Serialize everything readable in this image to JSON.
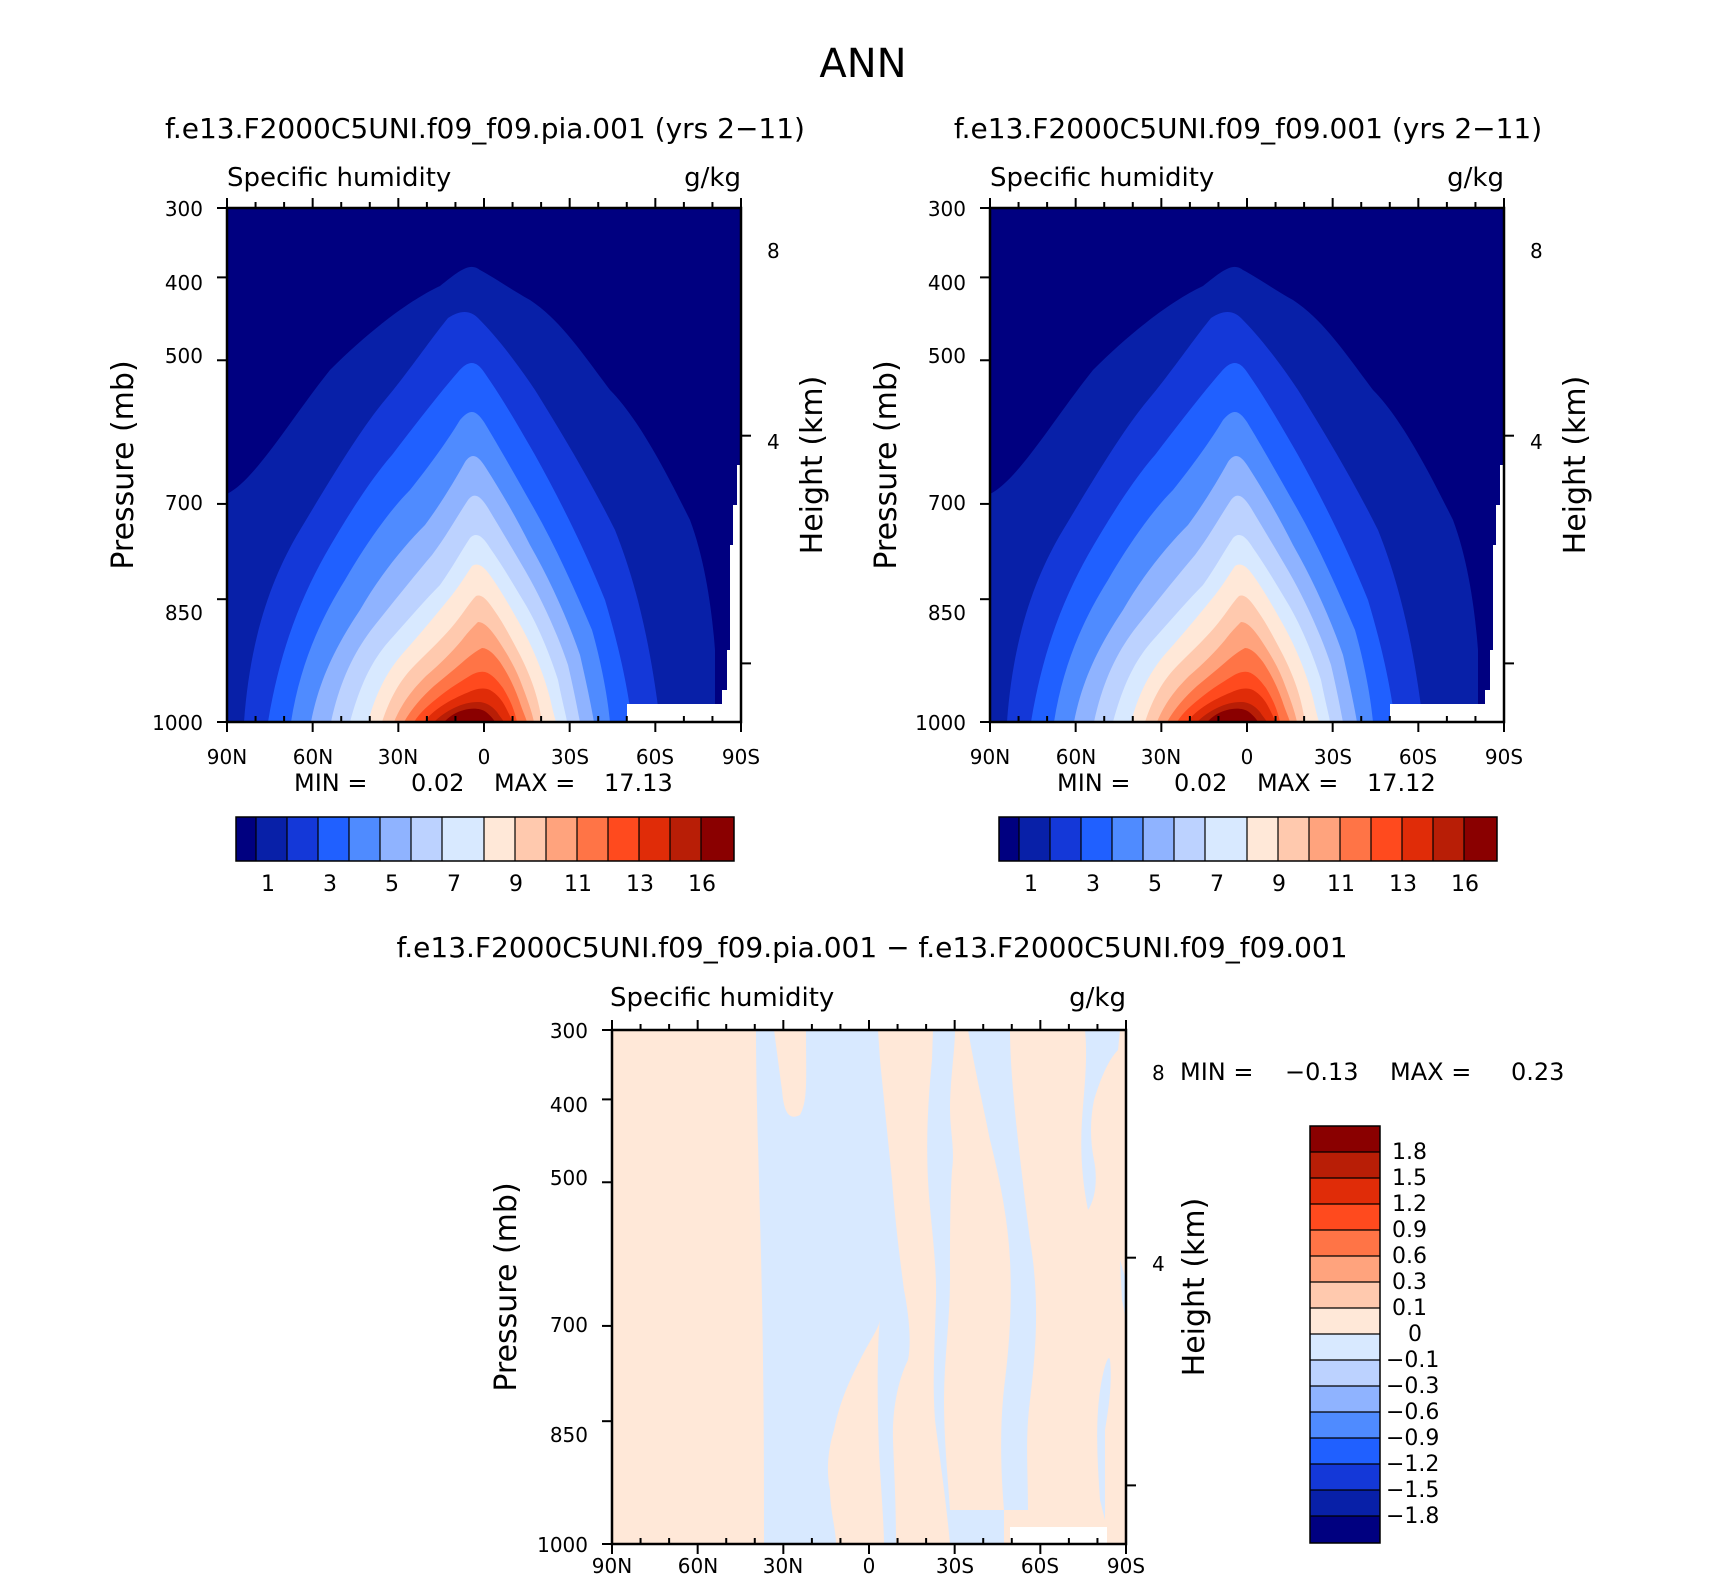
{
  "main_title": "ANN",
  "colors": {
    "deep_navy": "#000080",
    "navy": "#0820a8",
    "blue": "#1438d8",
    "mid_blue": "#2060ff",
    "light_blue": "#4f8bff",
    "pale_blue": "#8fb3ff",
    "very_pale_blue": "#bcd2ff",
    "near_white_blue": "#d8e9ff",
    "cream": "#ffe8d8",
    "peach": "#ffc9ae",
    "salmon": "#ffa37d",
    "orange": "#ff7446",
    "red_orange": "#ff4a1e",
    "red": "#e02c08",
    "dark_red": "#b81e06",
    "maroon": "#8a0000"
  },
  "chart_data": [
    {
      "type": "contour",
      "panel": "top-left",
      "title": "f.e13.F2000C5UNI.f09_f09.pia.001 (yrs 2−11)",
      "left_label": "Specific humidity",
      "right_label": "g/kg",
      "ylabel": "Pressure (mb)",
      "ylabel_right": "Height (km)",
      "x_tick_labels": [
        "90N",
        "60N",
        "30N",
        "0",
        "30S",
        "60S",
        "90S"
      ],
      "y_tick_labels": [
        "300",
        "400",
        "500",
        "700",
        "850",
        "1000"
      ],
      "y_right_tick_labels": [
        "8",
        "4"
      ],
      "xlim": [
        90,
        -90
      ],
      "ylim": [
        1000,
        300
      ],
      "min_label": "MIN =",
      "min_value": "0.02",
      "max_label": "MAX =",
      "max_value": "17.13",
      "colorbar_labels": [
        "1",
        "3",
        "5",
        "7",
        "9",
        "11",
        "13",
        "16"
      ],
      "colorbar_levels": [
        0.5,
        1,
        2,
        3,
        4,
        5,
        6,
        7,
        8,
        9,
        10,
        11,
        12,
        13,
        14,
        16
      ]
    },
    {
      "type": "contour",
      "panel": "top-right",
      "title": "f.e13.F2000C5UNI.f09_f09.001 (yrs 2−11)",
      "left_label": "Specific humidity",
      "right_label": "g/kg",
      "ylabel": "Pressure (mb)",
      "ylabel_right": "Height (km)",
      "x_tick_labels": [
        "90N",
        "60N",
        "30N",
        "0",
        "30S",
        "60S",
        "90S"
      ],
      "y_tick_labels": [
        "300",
        "400",
        "500",
        "700",
        "850",
        "1000"
      ],
      "y_right_tick_labels": [
        "8",
        "4"
      ],
      "xlim": [
        90,
        -90
      ],
      "ylim": [
        1000,
        300
      ],
      "min_label": "MIN =",
      "min_value": "0.02",
      "max_label": "MAX =",
      "max_value": "17.12",
      "colorbar_labels": [
        "1",
        "3",
        "5",
        "7",
        "9",
        "11",
        "13",
        "16"
      ]
    },
    {
      "type": "contour",
      "panel": "bottom-difference",
      "title": "f.e13.F2000C5UNI.f09_f09.pia.001 − f.e13.F2000C5UNI.f09_f09.001",
      "left_label": "Specific humidity",
      "right_label": "g/kg",
      "ylabel": "Pressure (mb)",
      "ylabel_right": "Height (km)",
      "x_tick_labels": [
        "90N",
        "60N",
        "30N",
        "0",
        "30S",
        "60S",
        "90S"
      ],
      "y_tick_labels": [
        "300",
        "400",
        "500",
        "700",
        "850",
        "1000"
      ],
      "y_right_tick_labels": [
        "8",
        "4"
      ],
      "xlim": [
        90,
        -90
      ],
      "ylim": [
        1000,
        300
      ],
      "min_label": "MIN =",
      "min_value": "−0.13",
      "max_label": "MAX =",
      "max_value": "0.23",
      "colorbar_labels": [
        "1.8",
        "1.5",
        "1.2",
        "0.9",
        "0.6",
        "0.3",
        "0.1",
        "0",
        "−0.1",
        "−0.3",
        "−0.6",
        "−0.9",
        "−1.2",
        "−1.5",
        "−1.8"
      ]
    }
  ]
}
